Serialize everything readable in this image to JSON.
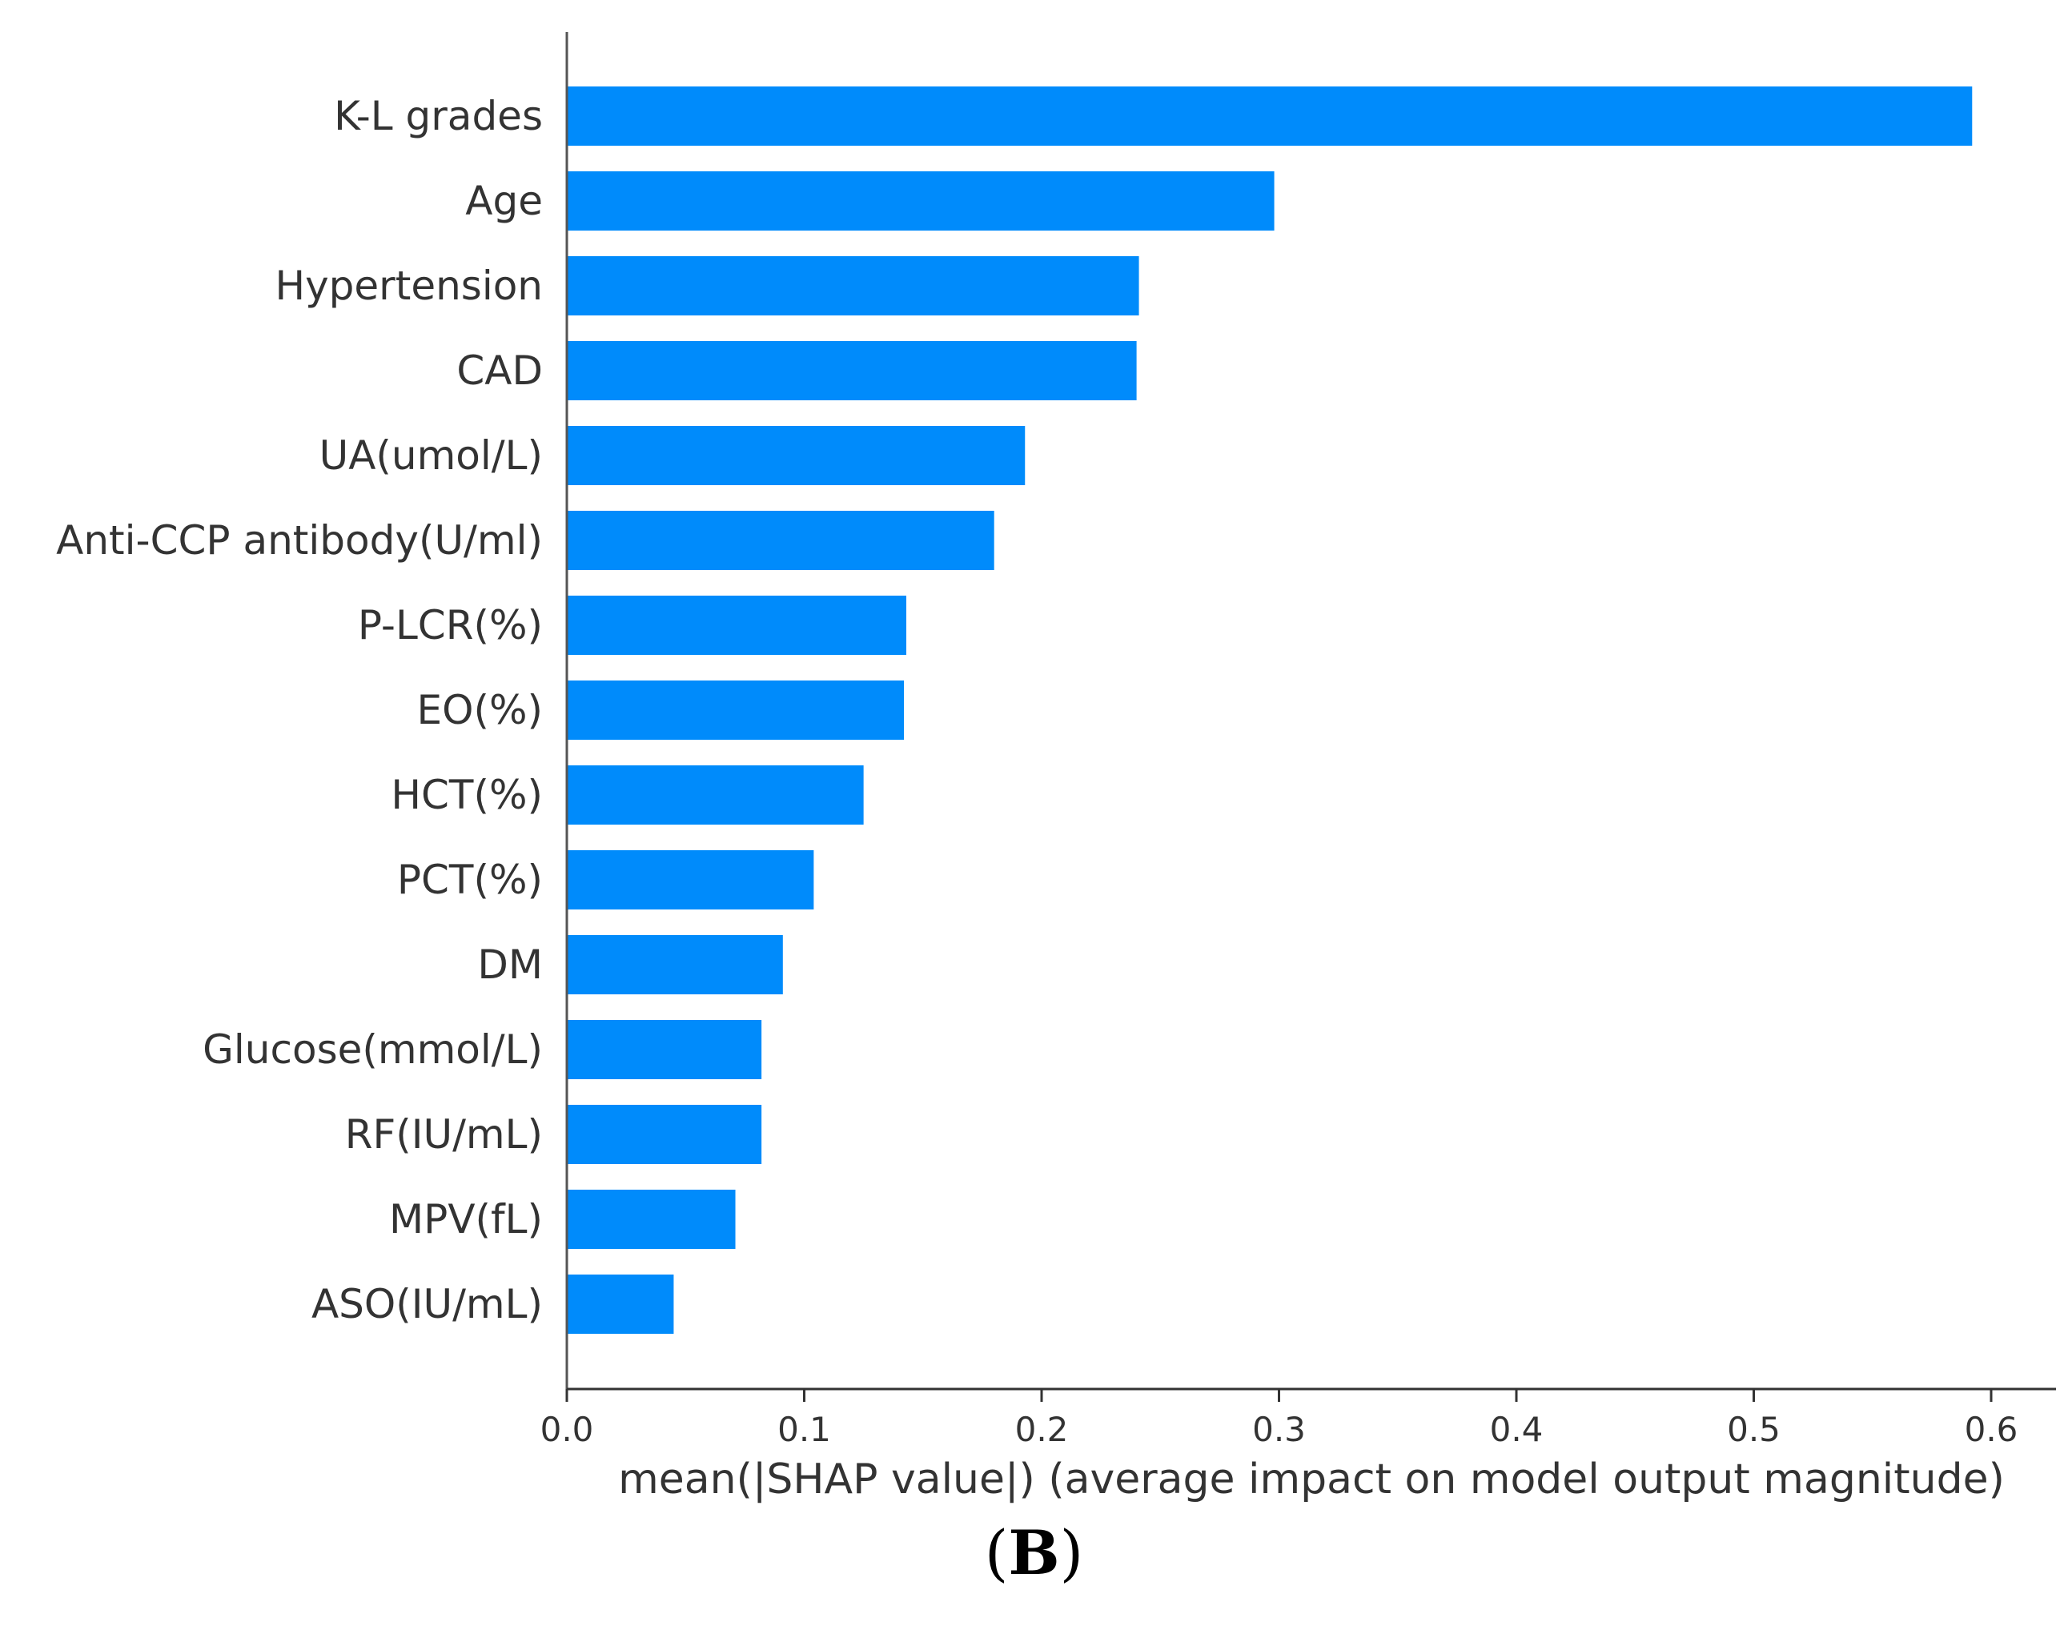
{
  "chart_data": {
    "type": "bar",
    "orientation": "horizontal",
    "categories": [
      "K-L grades",
      "Age",
      "Hypertension",
      "CAD",
      "UA(umol/L)",
      "Anti-CCP antibody(U/ml)",
      "P-LCR(%)",
      "EO(%)",
      "HCT(%)",
      "PCT(%)",
      "DM",
      "Glucose(mmol/L)",
      "RF(IU/mL)",
      "MPV(fL)",
      "ASO(IU/mL)"
    ],
    "values": [
      0.592,
      0.298,
      0.241,
      0.24,
      0.193,
      0.18,
      0.143,
      0.142,
      0.125,
      0.104,
      0.091,
      0.082,
      0.082,
      0.071,
      0.045
    ],
    "xlabel": "mean(|SHAP value|) (average impact on model output magnitude)",
    "ylabel": "",
    "xlim": [
      0,
      0.622
    ],
    "xticks": [
      0.0,
      0.1,
      0.2,
      0.3,
      0.4,
      0.5,
      0.6
    ],
    "xtick_labels": [
      "0.0",
      "0.1",
      "0.2",
      "0.3",
      "0.4",
      "0.5",
      "0.6"
    ],
    "grid": false,
    "bar_color": "#008bfb"
  },
  "panel_label": {
    "open": "(",
    "letter": "B",
    "close": ")"
  }
}
